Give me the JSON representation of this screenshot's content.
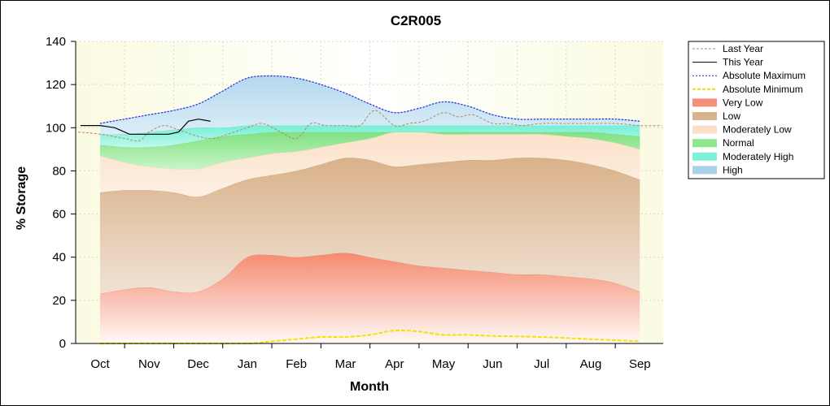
{
  "chart_data": {
    "type": "area",
    "title": "C2R005",
    "xlabel": "Month",
    "ylabel": "% Storage",
    "ylim": [
      0,
      140
    ],
    "yticks": [
      0,
      20,
      40,
      60,
      80,
      100,
      120,
      140
    ],
    "x_ticks": [
      "Oct",
      "Nov",
      "Dec",
      "Jan",
      "Feb",
      "Mar",
      "Apr",
      "May",
      "Jun",
      "Jul",
      "Aug",
      "Sep"
    ],
    "grid": true,
    "legend_position": "right",
    "legend": [
      {
        "label": "Last Year",
        "kind": "line",
        "color": "#b8865a",
        "dash": "3,2"
      },
      {
        "label": "This Year",
        "kind": "line",
        "color": "#000000",
        "dash": ""
      },
      {
        "label": "Absolute Maximum",
        "kind": "line",
        "color": "#1a1ae6",
        "dash": "2,2"
      },
      {
        "label": "Absolute Minimum",
        "kind": "line",
        "color": "#e6dd10",
        "dash": "4,2"
      },
      {
        "label": "Very Low",
        "kind": "fill",
        "color": "#f4907a"
      },
      {
        "label": "Low",
        "kind": "fill",
        "color": "#d8b48e"
      },
      {
        "label": "Moderately Low",
        "kind": "fill",
        "color": "#fbe0c8"
      },
      {
        "label": "Normal",
        "kind": "fill",
        "color": "#8ee88e"
      },
      {
        "label": "Moderately High",
        "kind": "fill",
        "color": "#7ef2d8"
      },
      {
        "label": "High",
        "kind": "fill",
        "color": "#a8d2ea"
      }
    ],
    "x": [
      0,
      0.5,
      1,
      1.5,
      2,
      2.5,
      3,
      3.5,
      4,
      4.5,
      5,
      5.5,
      6,
      6.5,
      7,
      7.5,
      8,
      8.5,
      9,
      9.5,
      10,
      10.5,
      11
    ],
    "bands": {
      "very_low": [
        23,
        25,
        26,
        24,
        24,
        30,
        40,
        41,
        40,
        41,
        42,
        40,
        38,
        36,
        35,
        34,
        33,
        32,
        32,
        31,
        30,
        28,
        24
      ],
      "low": [
        70,
        71,
        71,
        70,
        68,
        72,
        76,
        78,
        80,
        83,
        86,
        85,
        82,
        83,
        84,
        85,
        85,
        86,
        86,
        85,
        83,
        80,
        76
      ],
      "moderately_low": [
        87,
        84,
        82,
        81,
        81,
        84,
        86,
        88,
        89,
        91,
        93,
        95,
        98,
        98,
        97,
        97,
        97,
        97,
        97,
        96,
        95,
        93,
        90
      ],
      "normal": [
        92,
        91,
        91,
        92,
        94,
        96,
        97,
        98,
        98,
        98,
        98,
        98,
        98,
        98,
        98,
        98,
        98,
        98,
        98,
        98,
        98,
        97,
        96
      ],
      "moderately_high": [
        97,
        97,
        98,
        99,
        100,
        100,
        101,
        101,
        101,
        101,
        101,
        101,
        101,
        101,
        101,
        101,
        101,
        101,
        101,
        101,
        101,
        101,
        101
      ],
      "high": [
        102,
        104,
        106,
        108,
        111,
        117,
        123,
        124,
        123,
        120,
        116,
        111,
        107,
        109,
        112,
        110,
        106,
        104,
        104,
        104,
        104,
        104,
        103
      ]
    },
    "series": [
      {
        "name": "Absolute Maximum",
        "x": [
          0,
          0.5,
          1,
          1.5,
          2,
          2.5,
          3,
          3.5,
          4,
          4.5,
          5,
          5.5,
          6,
          6.5,
          7,
          7.5,
          8,
          8.5,
          9,
          9.5,
          10,
          10.5,
          11
        ],
        "y": [
          102,
          104,
          106,
          108,
          111,
          117,
          123,
          124,
          123,
          120,
          116,
          111,
          107,
          109,
          112,
          110,
          106,
          104,
          104,
          104,
          104,
          104,
          103
        ]
      },
      {
        "name": "Absolute Minimum",
        "x": [
          0,
          1,
          2,
          3,
          3.5,
          4,
          4.5,
          5,
          5.5,
          6,
          6.5,
          7,
          7.5,
          8,
          9,
          10,
          11
        ],
        "y": [
          0,
          0,
          0,
          0,
          1,
          2,
          3,
          3,
          4,
          6,
          5.5,
          4,
          4,
          3.5,
          3,
          2,
          1
        ]
      },
      {
        "name": "Last Year",
        "x": [
          -0.45,
          0,
          0.5,
          0.8,
          1,
          1.3,
          1.6,
          2,
          2.3,
          2.6,
          3,
          3.3,
          3.6,
          4,
          4.3,
          4.6,
          5,
          5.3,
          5.6,
          6,
          6.3,
          6.6,
          7,
          7.3,
          7.6,
          8,
          8.3,
          8.6,
          9,
          9.5,
          10,
          10.5,
          11,
          11.45
        ],
        "y": [
          98,
          97,
          95,
          94,
          98,
          101,
          99,
          96,
          95,
          97,
          100,
          102,
          99,
          95,
          102,
          101,
          101,
          101,
          108,
          101,
          102,
          103,
          107,
          105,
          106,
          102,
          102,
          101,
          102,
          102,
          102,
          102,
          101,
          101
        ]
      },
      {
        "name": "This Year",
        "x": [
          -0.4,
          0,
          0.3,
          0.6,
          0.9,
          1.2,
          1.4,
          1.6,
          1.8,
          2.0,
          2.25
        ],
        "y": [
          101,
          101,
          100,
          97,
          97,
          97,
          97,
          98,
          103,
          104,
          103
        ]
      }
    ]
  }
}
